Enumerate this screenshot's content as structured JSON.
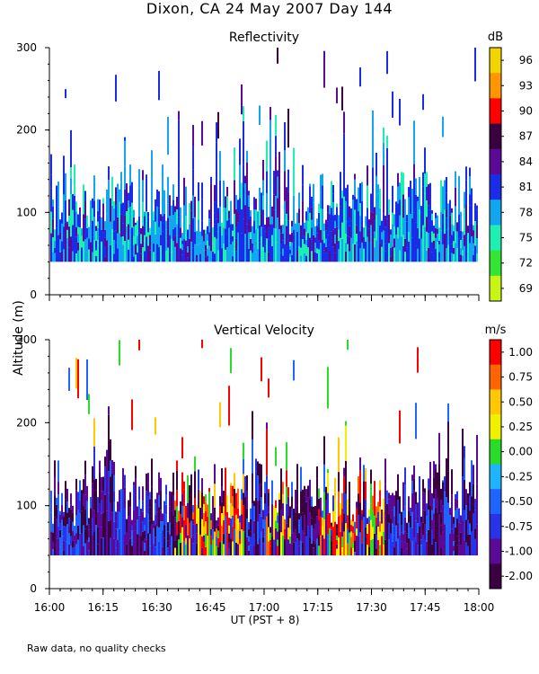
{
  "title": "Dixon, CA 24 May 2007  Day 144",
  "ylabel": "Altitude (m)",
  "xlabel": "UT  (PST + 8)",
  "footnote": "Raw data, no quality checks",
  "x_ticks": [
    "16:00",
    "16:15",
    "16:30",
    "16:45",
    "17:00",
    "17:15",
    "17:30",
    "17:45",
    "18:00"
  ],
  "chart_data": [
    {
      "type": "heatmap",
      "title": "Reflectivity",
      "x_range_hours": [
        16,
        18
      ],
      "ylim": [
        0,
        300
      ],
      "y_ticks": [
        0,
        100,
        200,
        300
      ],
      "colorbar": {
        "unit": "dB",
        "ticks": [
          "96",
          "93",
          "90",
          "87",
          "84",
          "81",
          "78",
          "75",
          "72",
          "69"
        ],
        "colors": [
          "#f2d400",
          "#ff9600",
          "#ff0000",
          "#3a0040",
          "#5a0a96",
          "#1a2ce6",
          "#12a6f0",
          "#1ef0b4",
          "#32e632",
          "#c8f514"
        ],
        "range": [
          69,
          99
        ]
      },
      "signal_floor_m": 40,
      "typical_top_m": 120,
      "palette_mix": [
        "#1a2ce6",
        "#12a6f0",
        "#5a0a96",
        "#1ef0b4",
        "#1a2ce6",
        "#12a6f0"
      ]
    },
    {
      "type": "heatmap",
      "title": "Vertical Velocity",
      "x_range_hours": [
        16,
        18
      ],
      "ylim": [
        0,
        300
      ],
      "y_ticks": [
        0,
        100,
        200,
        300
      ],
      "colorbar": {
        "unit": "m/s",
        "ticks": [
          "1.00",
          "0.75",
          "0.50",
          "0.25",
          "0.00",
          "-0.25",
          "-0.50",
          "-0.75",
          "-1.00",
          "-2.00"
        ],
        "colors": [
          "#ff0000",
          "#ff6400",
          "#ffc800",
          "#f0f000",
          "#28dc28",
          "#1eb4ff",
          "#1e64ff",
          "#2832e6",
          "#5a0a96",
          "#3a0040"
        ],
        "range": [
          -2.25,
          1.25
        ]
      },
      "signal_floor_m": 40,
      "typical_top_m": 120,
      "palette_mix": [
        "#3a0040",
        "#5a0a96",
        "#2832e6",
        "#3a0040",
        "#1e64ff",
        "#5a0a96"
      ]
    }
  ]
}
